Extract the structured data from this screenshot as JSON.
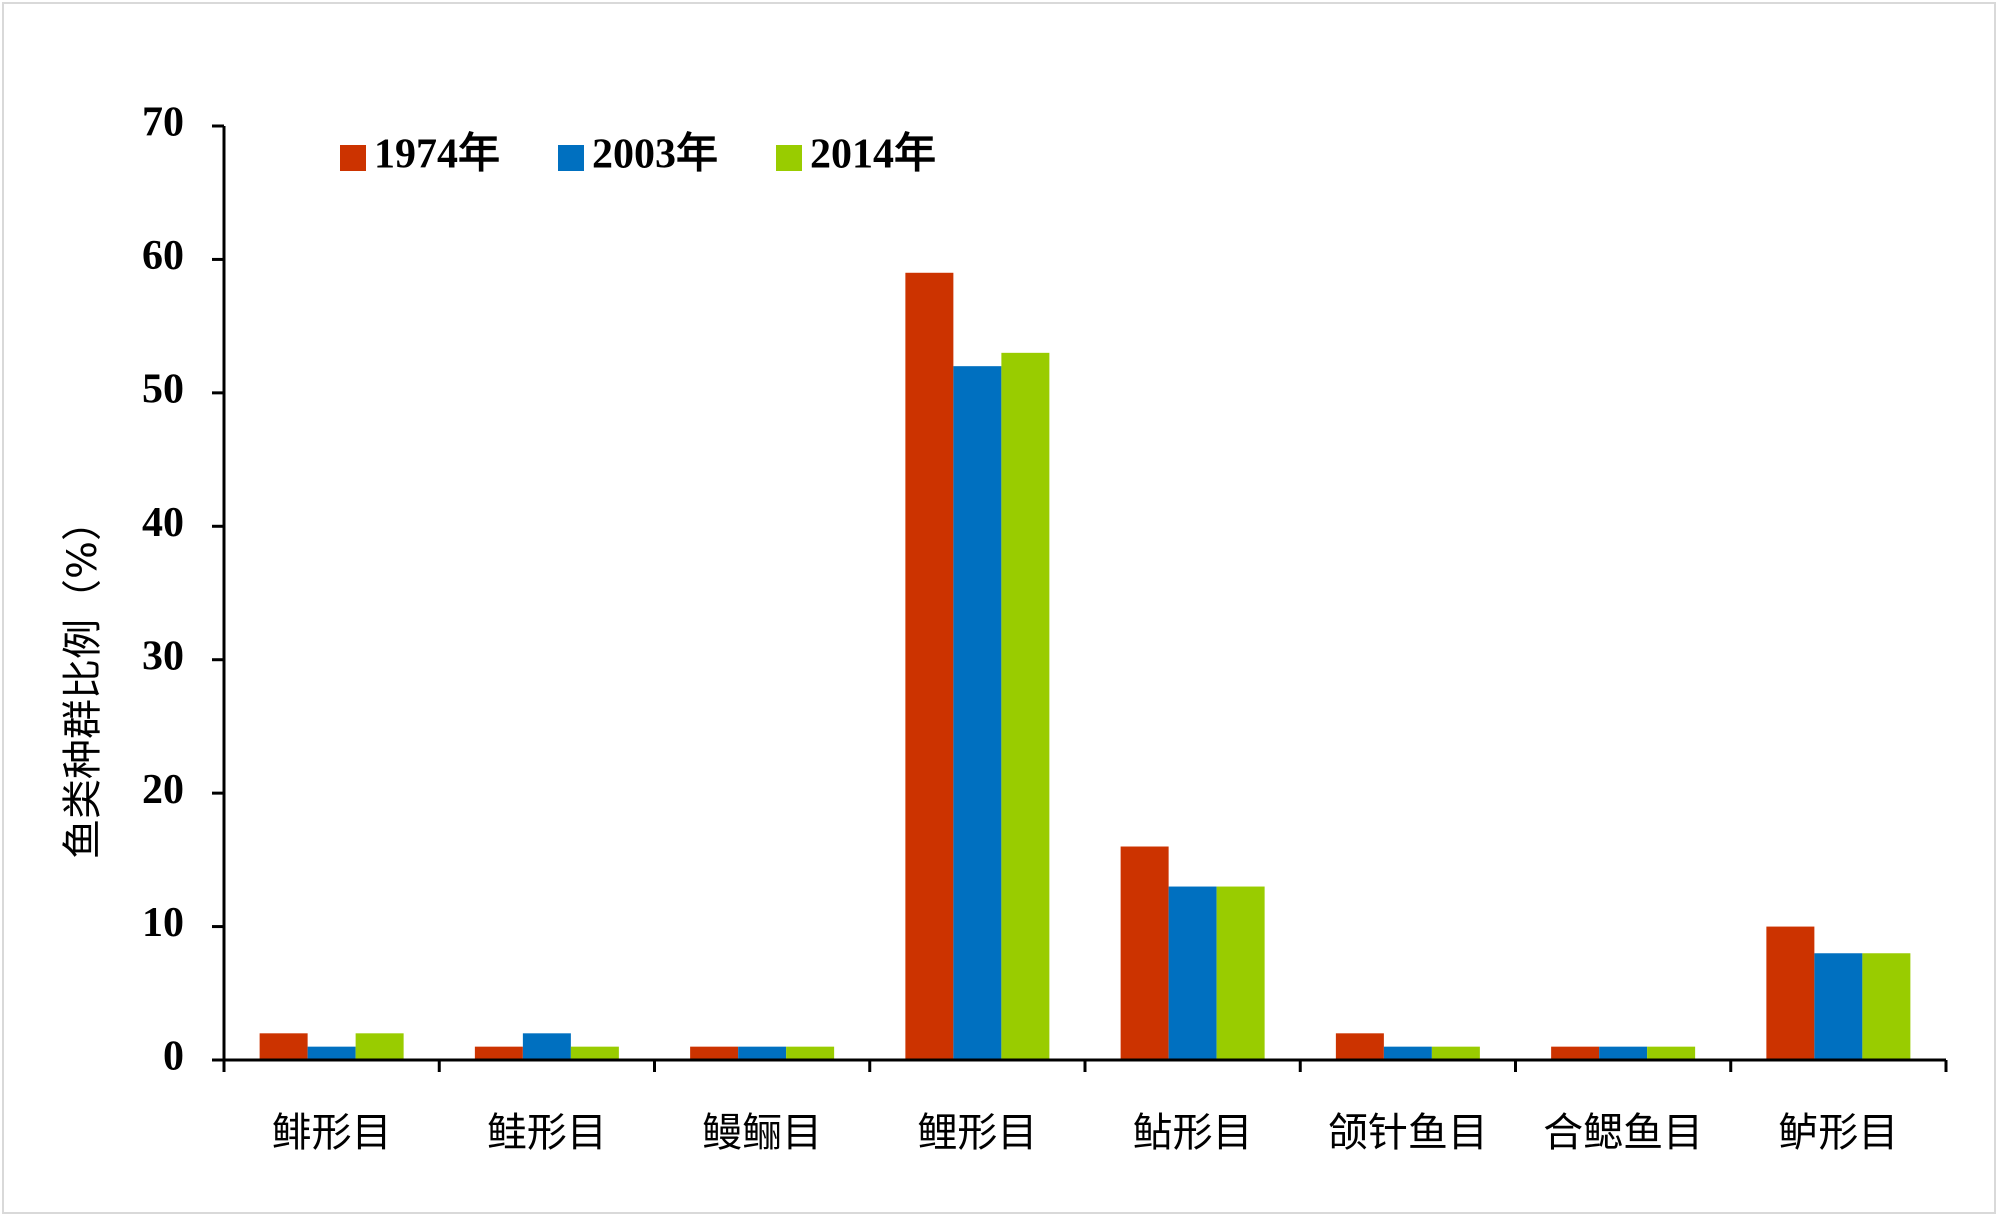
{
  "chart_data": {
    "type": "bar",
    "title": "",
    "xlabel": "",
    "ylabel": "鱼类种群比例（%）",
    "ylim": [
      0,
      70
    ],
    "yticks": [
      0,
      10,
      20,
      30,
      40,
      50,
      60,
      70
    ],
    "grid": false,
    "legend_position": "top-left",
    "categories": [
      "鲱形目",
      "鲑形目",
      "鳗鲡目",
      "鲤形目",
      "鲇形目",
      "颌针鱼目",
      "合鳃鱼目",
      "鲈形目"
    ],
    "series": [
      {
        "name": "1974年",
        "color": "#CC3300",
        "values": [
          2,
          1,
          1,
          59,
          16,
          2,
          1,
          10
        ]
      },
      {
        "name": "2003年",
        "color": "#0070C0",
        "values": [
          1,
          2,
          1,
          52,
          13,
          1,
          1,
          8
        ]
      },
      {
        "name": "2014年",
        "color": "#99CC00",
        "values": [
          2,
          1,
          1,
          53,
          13,
          1,
          1,
          8
        ]
      }
    ]
  }
}
